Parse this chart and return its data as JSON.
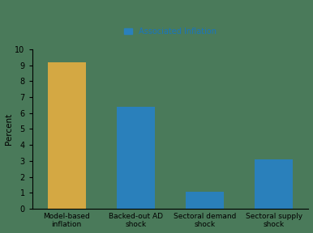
{
  "title": "Associated Inflation",
  "title_color": "#1a75bc",
  "ylabel": "Percent",
  "categories": [
    "Model-based\ninflation",
    "Backed-out AD\nshock",
    "Sectoral demand\nshock",
    "Sectoral supply\nshock"
  ],
  "values": [
    9.2,
    6.4,
    1.05,
    3.1
  ],
  "bar_colors": [
    "#d4a843",
    "#2a80bb",
    "#2a80bb",
    "#2a80bb"
  ],
  "ylim": [
    0,
    10
  ],
  "yticks": [
    0,
    1,
    2,
    3,
    4,
    5,
    6,
    7,
    8,
    9,
    10
  ],
  "background_color": "#4a7a5a",
  "legend_color": "#2a80bb",
  "fig_background": "#4a7a5a"
}
